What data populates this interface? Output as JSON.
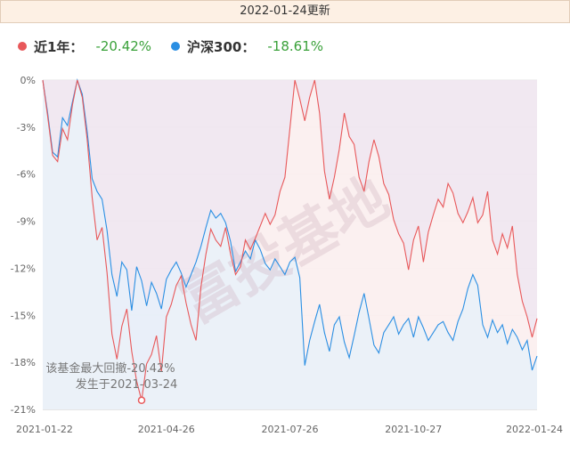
{
  "header": {
    "update_text": "2022-01-24更新"
  },
  "colors": {
    "fund": "#e8585a",
    "index": "#2b8fe3",
    "fund_fill": "#efe6ef",
    "index_fill": "#e6f1fb",
    "change_positive": "#3aa13a"
  },
  "legend": [
    {
      "name": "近1年：",
      "value": "-20.42%",
      "color": "#e8585a"
    },
    {
      "name": "沪深300：",
      "value": "-18.61%",
      "color": "#2b8fe3"
    }
  ],
  "chart_data": {
    "type": "line",
    "ylim": [
      -21,
      0
    ],
    "y_ticks": [
      "0%",
      "-3%",
      "-6%",
      "-9%",
      "-12%",
      "-15%",
      "-18%",
      "-21%"
    ],
    "x_ticks": [
      "2021-01-22",
      "2021-04-26",
      "2021-07-26",
      "2021-10-27",
      "2022-01-24"
    ],
    "x_tick_positions": [
      0,
      0.25,
      0.5,
      0.75,
      1
    ],
    "series": [
      {
        "name": "近1年",
        "values": [
          [
            0,
            0
          ],
          [
            0.01,
            -2.3
          ],
          [
            0.02,
            -4.8
          ],
          [
            0.03,
            -5.2
          ],
          [
            0.04,
            -3.1
          ],
          [
            0.05,
            -3.8
          ],
          [
            0.06,
            -1.6
          ],
          [
            0.07,
            0
          ],
          [
            0.08,
            -1.1
          ],
          [
            0.09,
            -3.8
          ],
          [
            0.1,
            -7.5
          ],
          [
            0.11,
            -10.2
          ],
          [
            0.12,
            -9.4
          ],
          [
            0.13,
            -12.3
          ],
          [
            0.14,
            -16.2
          ],
          [
            0.15,
            -17.8
          ],
          [
            0.16,
            -15.7
          ],
          [
            0.17,
            -14.6
          ],
          [
            0.18,
            -17.3
          ],
          [
            0.19,
            -19.2
          ],
          [
            0.2,
            -20.42
          ],
          [
            0.21,
            -18.1
          ],
          [
            0.22,
            -17.5
          ],
          [
            0.23,
            -16.3
          ],
          [
            0.24,
            -18.6
          ],
          [
            0.25,
            -15.1
          ],
          [
            0.26,
            -14.3
          ],
          [
            0.27,
            -13.1
          ],
          [
            0.28,
            -12.5
          ],
          [
            0.29,
            -14.2
          ],
          [
            0.3,
            -15.6
          ],
          [
            0.31,
            -16.6
          ],
          [
            0.32,
            -13.2
          ],
          [
            0.33,
            -11.1
          ],
          [
            0.34,
            -9.5
          ],
          [
            0.35,
            -10.2
          ],
          [
            0.36,
            -10.6
          ],
          [
            0.37,
            -9.4
          ],
          [
            0.38,
            -11.1
          ],
          [
            0.39,
            -12.4
          ],
          [
            0.4,
            -11.9
          ],
          [
            0.41,
            -10.2
          ],
          [
            0.42,
            -10.8
          ],
          [
            0.43,
            -10.1
          ],
          [
            0.44,
            -9.3
          ],
          [
            0.45,
            -8.5
          ],
          [
            0.46,
            -9.2
          ],
          [
            0.47,
            -8.6
          ],
          [
            0.48,
            -7.1
          ],
          [
            0.49,
            -6.2
          ],
          [
            0.5,
            -3.1
          ],
          [
            0.51,
            0
          ],
          [
            0.52,
            -1.2
          ],
          [
            0.53,
            -2.6
          ],
          [
            0.54,
            -1.1
          ],
          [
            0.55,
            0
          ],
          [
            0.56,
            -2.1
          ],
          [
            0.57,
            -5.8
          ],
          [
            0.58,
            -7.6
          ],
          [
            0.59,
            -6.2
          ],
          [
            0.6,
            -4.4
          ],
          [
            0.61,
            -2.1
          ],
          [
            0.62,
            -3.6
          ],
          [
            0.63,
            -4.1
          ],
          [
            0.64,
            -6.2
          ],
          [
            0.65,
            -7.1
          ],
          [
            0.66,
            -5.2
          ],
          [
            0.67,
            -3.8
          ],
          [
            0.68,
            -4.9
          ],
          [
            0.69,
            -6.6
          ],
          [
            0.7,
            -7.3
          ],
          [
            0.71,
            -8.9
          ],
          [
            0.72,
            -9.8
          ],
          [
            0.73,
            -10.4
          ],
          [
            0.74,
            -12.1
          ],
          [
            0.75,
            -10.2
          ],
          [
            0.76,
            -9.3
          ],
          [
            0.77,
            -11.6
          ],
          [
            0.78,
            -9.7
          ],
          [
            0.79,
            -8.6
          ],
          [
            0.8,
            -7.6
          ],
          [
            0.81,
            -8.1
          ],
          [
            0.82,
            -6.6
          ],
          [
            0.83,
            -7.2
          ],
          [
            0.84,
            -8.5
          ],
          [
            0.85,
            -9.1
          ],
          [
            0.86,
            -8.4
          ],
          [
            0.87,
            -7.5
          ],
          [
            0.88,
            -9.1
          ],
          [
            0.89,
            -8.6
          ],
          [
            0.9,
            -7.1
          ],
          [
            0.91,
            -10.2
          ],
          [
            0.92,
            -11.1
          ],
          [
            0.93,
            -9.8
          ],
          [
            0.94,
            -10.7
          ],
          [
            0.95,
            -9.3
          ],
          [
            0.96,
            -12.4
          ],
          [
            0.97,
            -14.1
          ],
          [
            0.98,
            -15.1
          ],
          [
            0.99,
            -16.4
          ],
          [
            1,
            -15.2
          ]
        ]
      },
      {
        "name": "沪深300",
        "values": [
          [
            0,
            0
          ],
          [
            0.01,
            -2.1
          ],
          [
            0.02,
            -4.6
          ],
          [
            0.03,
            -4.9
          ],
          [
            0.04,
            -2.4
          ],
          [
            0.05,
            -2.9
          ],
          [
            0.06,
            -1.4
          ],
          [
            0.07,
            0
          ],
          [
            0.08,
            -0.9
          ],
          [
            0.09,
            -3.3
          ],
          [
            0.1,
            -6.3
          ],
          [
            0.11,
            -7.1
          ],
          [
            0.12,
            -7.6
          ],
          [
            0.13,
            -9.6
          ],
          [
            0.14,
            -12.4
          ],
          [
            0.15,
            -13.8
          ],
          [
            0.16,
            -11.6
          ],
          [
            0.17,
            -12.1
          ],
          [
            0.18,
            -14.7
          ],
          [
            0.19,
            -11.9
          ],
          [
            0.2,
            -12.8
          ],
          [
            0.21,
            -14.4
          ],
          [
            0.22,
            -12.9
          ],
          [
            0.23,
            -13.6
          ],
          [
            0.24,
            -14.6
          ],
          [
            0.25,
            -12.7
          ],
          [
            0.26,
            -12.1
          ],
          [
            0.27,
            -11.6
          ],
          [
            0.28,
            -12.3
          ],
          [
            0.29,
            -13.2
          ],
          [
            0.3,
            -12.4
          ],
          [
            0.31,
            -11.6
          ],
          [
            0.32,
            -10.6
          ],
          [
            0.33,
            -9.4
          ],
          [
            0.34,
            -8.3
          ],
          [
            0.35,
            -8.8
          ],
          [
            0.36,
            -8.5
          ],
          [
            0.37,
            -9.1
          ],
          [
            0.38,
            -10.3
          ],
          [
            0.39,
            -12.2
          ],
          [
            0.4,
            -11.6
          ],
          [
            0.41,
            -10.9
          ],
          [
            0.42,
            -11.4
          ],
          [
            0.43,
            -10.2
          ],
          [
            0.44,
            -10.8
          ],
          [
            0.45,
            -11.7
          ],
          [
            0.46,
            -12.1
          ],
          [
            0.47,
            -11.4
          ],
          [
            0.48,
            -11.9
          ],
          [
            0.49,
            -12.4
          ],
          [
            0.5,
            -11.6
          ],
          [
            0.51,
            -11.3
          ],
          [
            0.52,
            -12.6
          ],
          [
            0.53,
            -18.2
          ],
          [
            0.54,
            -16.6
          ],
          [
            0.55,
            -15.4
          ],
          [
            0.56,
            -14.3
          ],
          [
            0.57,
            -16.1
          ],
          [
            0.58,
            -17.3
          ],
          [
            0.59,
            -15.6
          ],
          [
            0.6,
            -15.1
          ],
          [
            0.61,
            -16.7
          ],
          [
            0.62,
            -17.7
          ],
          [
            0.63,
            -16.3
          ],
          [
            0.64,
            -14.8
          ],
          [
            0.65,
            -13.6
          ],
          [
            0.66,
            -15.2
          ],
          [
            0.67,
            -16.9
          ],
          [
            0.68,
            -17.4
          ],
          [
            0.69,
            -16.1
          ],
          [
            0.7,
            -15.6
          ],
          [
            0.71,
            -15.1
          ],
          [
            0.72,
            -16.2
          ],
          [
            0.73,
            -15.6
          ],
          [
            0.74,
            -15.2
          ],
          [
            0.75,
            -16.4
          ],
          [
            0.76,
            -15.1
          ],
          [
            0.77,
            -15.8
          ],
          [
            0.78,
            -16.6
          ],
          [
            0.79,
            -16.1
          ],
          [
            0.8,
            -15.6
          ],
          [
            0.81,
            -15.4
          ],
          [
            0.82,
            -16.1
          ],
          [
            0.83,
            -16.6
          ],
          [
            0.84,
            -15.4
          ],
          [
            0.85,
            -14.6
          ],
          [
            0.86,
            -13.3
          ],
          [
            0.87,
            -12.4
          ],
          [
            0.88,
            -13.1
          ],
          [
            0.89,
            -15.6
          ],
          [
            0.9,
            -16.4
          ],
          [
            0.91,
            -15.3
          ],
          [
            0.92,
            -16.1
          ],
          [
            0.93,
            -15.6
          ],
          [
            0.94,
            -16.8
          ],
          [
            0.95,
            -15.9
          ],
          [
            0.96,
            -16.4
          ],
          [
            0.97,
            -17.2
          ],
          [
            0.98,
            -16.6
          ],
          [
            0.99,
            -18.5
          ],
          [
            1,
            -17.6
          ]
        ]
      }
    ],
    "annotation": {
      "line1": "该基金最大回撤-20.42%",
      "line2": "发生于2021-03-24",
      "x": 0.2,
      "y": -20.42
    },
    "watermark": "富投基地",
    "grid": true
  }
}
